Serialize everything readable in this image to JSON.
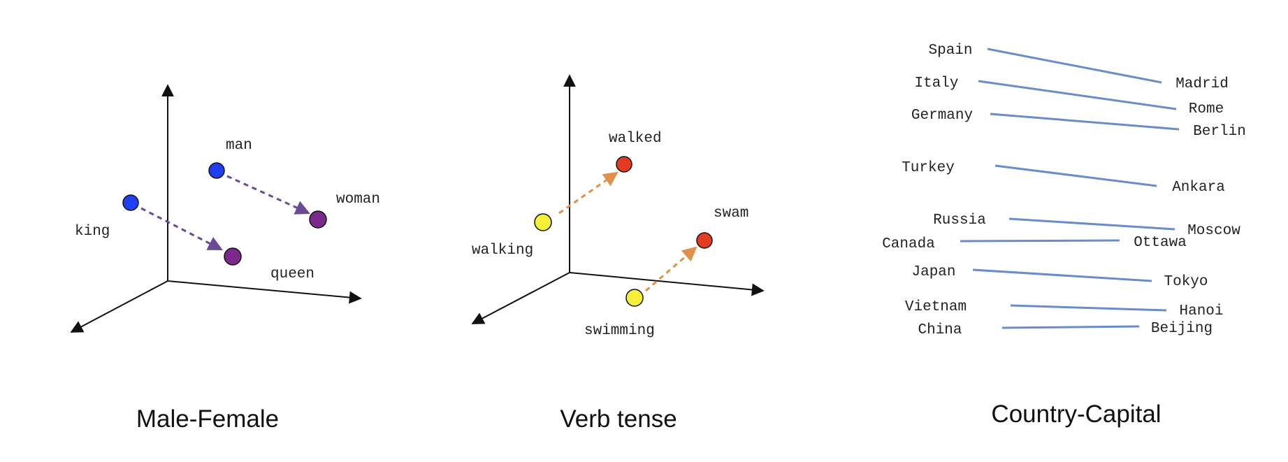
{
  "colors": {
    "axis": "#111111",
    "blue_point": "#1f3ff0",
    "purple_point": "#7b2a8c",
    "purple_arrow": "#6a4a94",
    "yellow_point": "#f5ef3a",
    "red_point": "#e33a22",
    "orange_arrow": "#e0904a",
    "pair_line": "#6a8cc8"
  },
  "panels": {
    "male_female": {
      "caption": "Male-Female",
      "labels": {
        "man": "man",
        "woman": "woman",
        "king": "king",
        "queen": "queen"
      }
    },
    "verb_tense": {
      "caption": "Verb tense",
      "labels": {
        "walked": "walked",
        "walking": "walking",
        "swam": "swam",
        "swimming": "swimming"
      }
    },
    "country_capital": {
      "caption": "Country-Capital",
      "pairs": [
        {
          "country": "Spain",
          "capital": "Madrid"
        },
        {
          "country": "Italy",
          "capital": "Rome"
        },
        {
          "country": "Germany",
          "capital": "Berlin"
        },
        {
          "country": "Turkey",
          "capital": "Ankara"
        },
        {
          "country": "Russia",
          "capital": "Moscow"
        },
        {
          "country": "Canada",
          "capital": "Ottawa"
        },
        {
          "country": "Japan",
          "capital": "Tokyo"
        },
        {
          "country": "Vietnam",
          "capital": "Hanoi"
        },
        {
          "country": "China",
          "capital": "Beijing"
        }
      ]
    }
  }
}
